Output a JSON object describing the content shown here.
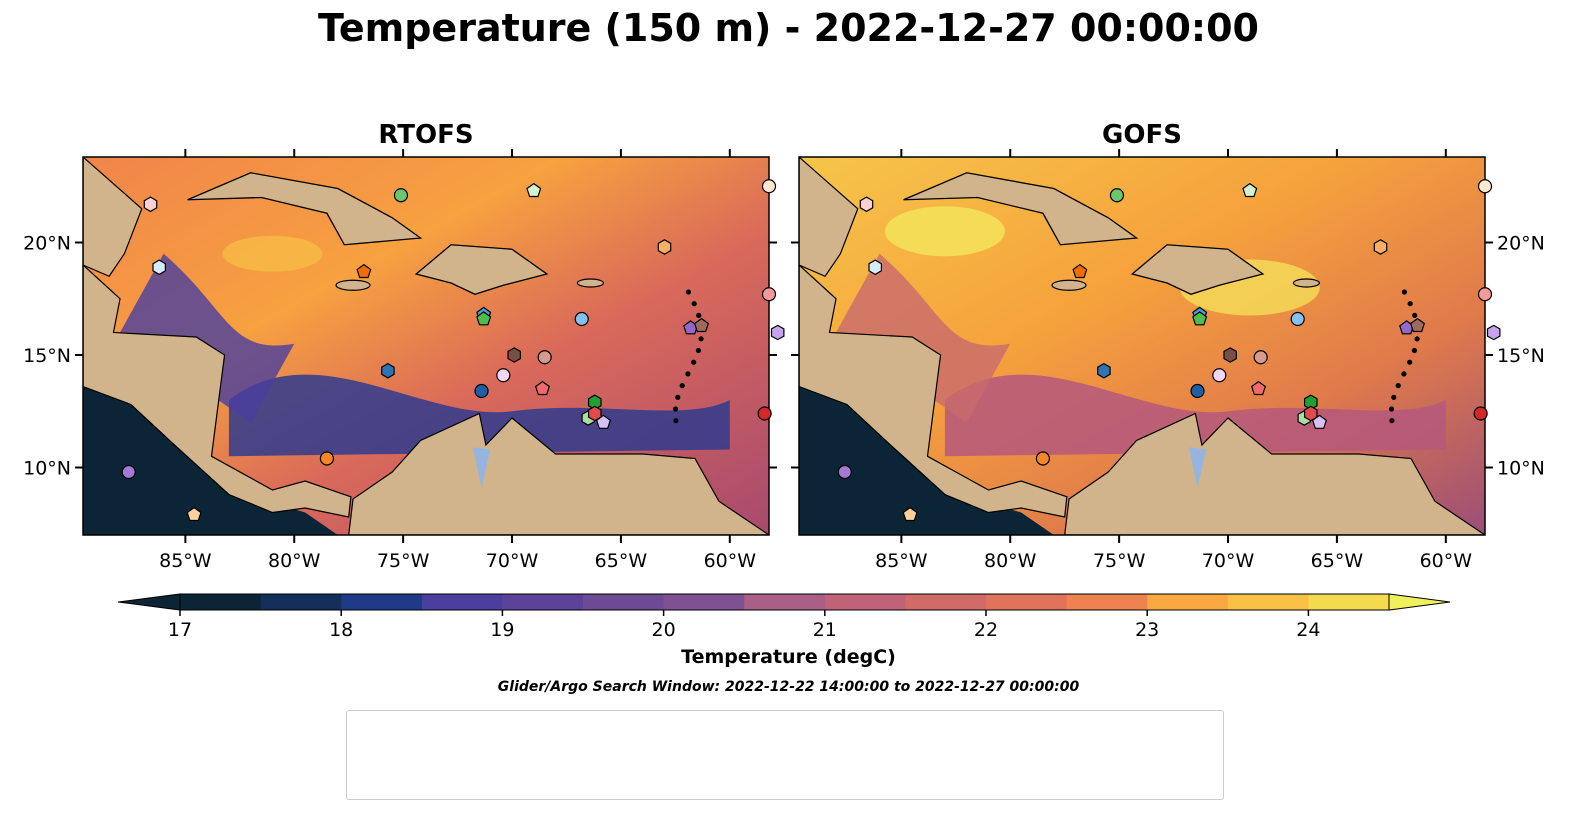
{
  "title": "Temperature (150 m) - 2022-12-27 00:00:00",
  "colors": {
    "land": "#d2b48c",
    "shallow_water": "#95b4e0",
    "deep_dark": "#0b2436"
  },
  "chart_data": {
    "type": "heatmap",
    "panels": [
      {
        "title": "RTOFS"
      },
      {
        "title": "GOFS"
      }
    ],
    "x_ticks": [
      "85°W",
      "80°W",
      "75°W",
      "70°W",
      "65°W",
      "60°W"
    ],
    "x_tick_values": [
      -85,
      -80,
      -75,
      -70,
      -65,
      -60
    ],
    "y_ticks": [
      "20°N",
      "15°N",
      "10°N"
    ],
    "y_tick_values": [
      20,
      15,
      10
    ],
    "xlim": [
      -89.7,
      -58.2
    ],
    "ylim": [
      7,
      23.8
    ],
    "colorbar": {
      "label": "Temperature (degC)",
      "ticks": [
        "17",
        "18",
        "19",
        "20",
        "21",
        "22",
        "23",
        "24"
      ],
      "tick_values": [
        17,
        18,
        19,
        20,
        21,
        22,
        23,
        24
      ],
      "range": [
        17,
        24.5
      ],
      "step": 0.5,
      "extend": "both",
      "colormap": "thermal"
    },
    "search_window": "Glider/Argo Search Window: 2022-12-22 14:00:00 to 2022-12-27 00:00:00",
    "floats": [
      {
        "id": "2903766",
        "marker": "circle",
        "color": "#1f5fa8",
        "lon": -71.4,
        "lat": 13.4
      },
      {
        "id": "3901859",
        "marker": "hexagon",
        "color": "#2f74b5",
        "lon": -75.7,
        "lat": 14.3
      },
      {
        "id": "3902456",
        "marker": "pentagon",
        "color": "#4a9fd8",
        "lon": -71.3,
        "lat": 16.8
      },
      {
        "id": "3902457",
        "marker": "circle",
        "color": "#86c0ee",
        "lon": -66.8,
        "lat": 16.6
      },
      {
        "id": "4901716",
        "marker": "hexagon",
        "color": "#d4ecff",
        "lon": -86.2,
        "lat": 18.9
      },
      {
        "id": "4901719",
        "marker": "pentagon",
        "color": "#f26d00",
        "lon": -76.8,
        "lat": 18.7
      },
      {
        "id": "4901720",
        "marker": "circle",
        "color": "#f5862a",
        "lon": -78.5,
        "lat": 10.4
      },
      {
        "id": "4902355",
        "marker": "hexagon",
        "color": "#fbb066",
        "lon": -63.0,
        "lat": 19.8
      },
      {
        "id": "4902476",
        "marker": "pentagon",
        "color": "#fdd09c",
        "lon": -84.6,
        "lat": 7.9
      },
      {
        "id": "4903237",
        "marker": "circle",
        "color": "#fde8d2",
        "lon": -58.2,
        "lat": 22.5
      },
      {
        "id": "4903277",
        "marker": "hexagon",
        "color": "#1fa033",
        "lon": -66.2,
        "lat": 12.9
      },
      {
        "id": "4903278",
        "marker": "pentagon",
        "color": "#4dbd4d",
        "lon": -71.3,
        "lat": 16.6
      },
      {
        "id": "4903333",
        "marker": "circle",
        "color": "#6cc76c",
        "lon": -75.1,
        "lat": 22.1
      },
      {
        "id": "4903344",
        "marker": "hexagon",
        "color": "#a6dfa0",
        "lon": -66.5,
        "lat": 12.2
      },
      {
        "id": "4903345",
        "marker": "pentagon",
        "color": "#d3f2cf",
        "lon": -69.0,
        "lat": 22.3
      },
      {
        "id": "4903347",
        "marker": "circle",
        "color": "#d62728",
        "lon": -58.4,
        "lat": 12.4
      },
      {
        "id": "4903349",
        "marker": "hexagon",
        "color": "#e24b4b",
        "lon": -66.2,
        "lat": 12.4
      },
      {
        "id": "4903350",
        "marker": "pentagon",
        "color": "#f06b6b",
        "lon": -68.6,
        "lat": 13.5
      },
      {
        "id": "4903352",
        "marker": "circle",
        "color": "#f59a9a",
        "lon": -58.2,
        "lat": 17.7
      },
      {
        "id": "4903354",
        "marker": "hexagon",
        "color": "#fbd0d0",
        "lon": -86.6,
        "lat": 21.7
      },
      {
        "id": "4903629",
        "marker": "pentagon",
        "color": "#9368c9",
        "lon": -61.8,
        "lat": 16.2
      },
      {
        "id": "5906478",
        "marker": "circle",
        "color": "#a57ad6",
        "lon": -87.6,
        "lat": 9.8
      },
      {
        "id": "5906480",
        "marker": "hexagon",
        "color": "#c4a4ec",
        "lon": -57.8,
        "lat": 16.0
      },
      {
        "id": "6902958",
        "marker": "pentagon",
        "color": "#d8c1f6",
        "lon": -65.8,
        "lat": 12.0
      },
      {
        "id": "6903134",
        "marker": "circle",
        "color": "#f2d6f6",
        "lon": -70.4,
        "lat": 14.1
      },
      {
        "id": "6903135",
        "marker": "hexagon",
        "color": "#7a4e44",
        "lon": -69.9,
        "lat": 15.0
      },
      {
        "id": "6903136",
        "marker": "pentagon",
        "color": "#a06a5c",
        "lon": -61.3,
        "lat": 16.3
      },
      {
        "id": "6903137",
        "marker": "circle",
        "color": "#d69a8f",
        "lon": -68.5,
        "lat": 14.9
      }
    ]
  }
}
